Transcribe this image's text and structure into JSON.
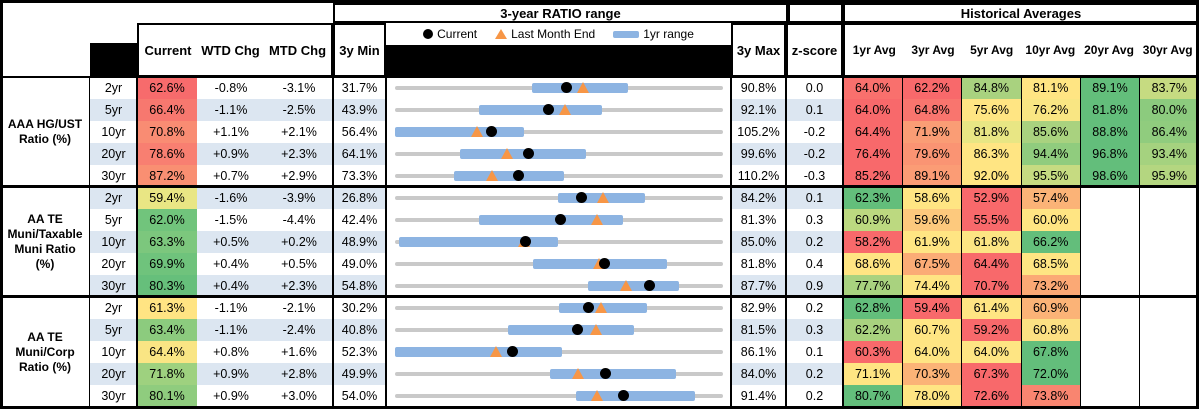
{
  "header": {
    "ratio_range_title": "3-year RATIO range",
    "historical_title": "Historical Averages",
    "col_current": "Current",
    "col_wtd": "WTD Chg",
    "col_mtd": "MTD Chg",
    "col_min": "3y Min",
    "col_max": "3y Max",
    "col_z": "z-score",
    "avg_cols": [
      "1yr Avg",
      "3yr Avg",
      "5yr Avg",
      "10yr Avg",
      "20yr Avg",
      "30yr Avg"
    ],
    "legend": {
      "current_label": "Current",
      "last_month_label": "Last Month End",
      "range_label": "1yr range"
    }
  },
  "colors": {
    "band_blue": "#DCE6F1",
    "bar_blue": "#8DB4E2",
    "line_gray": "#C9C9C9",
    "triangle_orange": "#F79646",
    "dot_black": "#000000",
    "heat_red": "#F8696B",
    "heat_yellow": "#FFE583",
    "heat_green": "#63BE7B"
  },
  "groups": [
    {
      "label": "AAA HG/UST\nRatio (%)",
      "rows": [
        {
          "tenor": "2yr",
          "current": "62.6%",
          "current_color": "#F76B6C",
          "wtd_chg": "-0.8%",
          "mtd_chg": "-3.1%",
          "min": "31.7%",
          "max": "90.8%",
          "zscore": "0.0",
          "range": {
            "min": 31.7,
            "max": 90.8,
            "bar_low": 56.4,
            "bar_high": 73.7,
            "current": 62.6,
            "last_month": 65.7
          },
          "avgs": [
            {
              "v": "64.0%",
              "color": "#F9706D"
            },
            {
              "v": "62.2%",
              "color": "#F8696B"
            },
            {
              "v": "84.8%",
              "color": "#A9D27F"
            },
            {
              "v": "81.1%",
              "color": "#FFE583"
            },
            {
              "v": "89.1%",
              "color": "#63BE7B"
            },
            {
              "v": "83.7%",
              "color": "#C6DB81"
            }
          ]
        },
        {
          "tenor": "5yr",
          "current": "66.4%",
          "current_color": "#F7786F",
          "wtd_chg": "-1.1%",
          "mtd_chg": "-2.5%",
          "min": "43.9%",
          "max": "92.1%",
          "zscore": "0.1",
          "range": {
            "min": 43.9,
            "max": 92.1,
            "bar_low": 56.2,
            "bar_high": 74.3,
            "current": 66.4,
            "last_month": 68.9
          },
          "avgs": [
            {
              "v": "64.0%",
              "color": "#F8696B"
            },
            {
              "v": "64.8%",
              "color": "#F9756E"
            },
            {
              "v": "75.6%",
              "color": "#FFE583"
            },
            {
              "v": "76.2%",
              "color": "#F9E683"
            },
            {
              "v": "81.8%",
              "color": "#63BE7B"
            },
            {
              "v": "80.0%",
              "color": "#8CCB7E"
            }
          ]
        },
        {
          "tenor": "10yr",
          "current": "70.8%",
          "current_color": "#F98C73",
          "wtd_chg": "+1.1%",
          "mtd_chg": "+2.1%",
          "min": "56.4%",
          "max": "105.2%",
          "zscore": "-0.2",
          "range": {
            "min": 56.4,
            "max": 105.2,
            "bar_low": 56.4,
            "bar_high": 75.6,
            "current": 70.8,
            "last_month": 68.7
          },
          "avgs": [
            {
              "v": "64.4%",
              "color": "#F8696B"
            },
            {
              "v": "71.9%",
              "color": "#FA9D75"
            },
            {
              "v": "81.8%",
              "color": "#E8E684"
            },
            {
              "v": "85.6%",
              "color": "#A9D27F"
            },
            {
              "v": "88.8%",
              "color": "#63BE7B"
            },
            {
              "v": "86.4%",
              "color": "#90CC7E"
            }
          ]
        },
        {
          "tenor": "20yr",
          "current": "78.6%",
          "current_color": "#F87F71",
          "wtd_chg": "+0.9%",
          "mtd_chg": "+2.3%",
          "min": "64.1%",
          "max": "99.6%",
          "zscore": "-0.2",
          "range": {
            "min": 64.1,
            "max": 99.6,
            "bar_low": 71.1,
            "bar_high": 84.8,
            "current": 78.6,
            "last_month": 76.3
          },
          "avgs": [
            {
              "v": "76.4%",
              "color": "#F8696B"
            },
            {
              "v": "79.6%",
              "color": "#FA9473"
            },
            {
              "v": "86.3%",
              "color": "#FFE583"
            },
            {
              "v": "94.4%",
              "color": "#90CC7E"
            },
            {
              "v": "96.8%",
              "color": "#63BE7B"
            },
            {
              "v": "93.4%",
              "color": "#A5D27F"
            }
          ]
        },
        {
          "tenor": "30yr",
          "current": "87.2%",
          "current_color": "#F98F72",
          "wtd_chg": "+0.7%",
          "mtd_chg": "+2.9%",
          "min": "73.3%",
          "max": "110.2%",
          "zscore": "-0.3",
          "range": {
            "min": 73.3,
            "max": 110.2,
            "bar_low": 79.9,
            "bar_high": 92.3,
            "current": 87.2,
            "last_month": 84.3
          },
          "avgs": [
            {
              "v": "85.2%",
              "color": "#F8696B"
            },
            {
              "v": "89.1%",
              "color": "#FB9C75"
            },
            {
              "v": "92.0%",
              "color": "#FFE583"
            },
            {
              "v": "95.5%",
              "color": "#C6DB81"
            },
            {
              "v": "98.6%",
              "color": "#63BE7B"
            },
            {
              "v": "95.9%",
              "color": "#B4D680"
            }
          ]
        }
      ]
    },
    {
      "label": "AA TE\nMuni/Taxable\nMuni Ratio\n(%)",
      "rows": [
        {
          "tenor": "2yr",
          "current": "59.4%",
          "current_color": "#E9E684",
          "wtd_chg": "-1.6%",
          "mtd_chg": "-3.9%",
          "min": "26.8%",
          "max": "84.2%",
          "zscore": "0.1",
          "range": {
            "min": 26.8,
            "max": 84.2,
            "bar_low": 55.4,
            "bar_high": 70.6,
            "current": 59.4,
            "last_month": 63.3
          },
          "avgs": [
            {
              "v": "62.3%",
              "color": "#63BE7B"
            },
            {
              "v": "58.6%",
              "color": "#FFE583"
            },
            {
              "v": "52.9%",
              "color": "#F8696B"
            },
            {
              "v": "57.4%",
              "color": "#FBB377"
            }
          ]
        },
        {
          "tenor": "5yr",
          "current": "62.0%",
          "current_color": "#71C47C",
          "wtd_chg": "-1.5%",
          "mtd_chg": "-4.4%",
          "min": "42.4%",
          "max": "81.3%",
          "zscore": "0.3",
          "range": {
            "min": 42.4,
            "max": 81.3,
            "bar_low": 52.4,
            "bar_high": 69.5,
            "current": 62.0,
            "last_month": 66.4
          },
          "avgs": [
            {
              "v": "60.9%",
              "color": "#BCD980"
            },
            {
              "v": "59.6%",
              "color": "#FDC97D"
            },
            {
              "v": "55.5%",
              "color": "#F8696B"
            },
            {
              "v": "60.0%",
              "color": "#FFE583"
            }
          ]
        },
        {
          "tenor": "10yr",
          "current": "63.3%",
          "current_color": "#7CC77D",
          "wtd_chg": "+0.5%",
          "mtd_chg": "+0.2%",
          "min": "48.9%",
          "max": "85.0%",
          "zscore": "0.2",
          "range": {
            "min": 48.9,
            "max": 85.0,
            "bar_low": 49.3,
            "bar_high": 66.8,
            "current": 63.3,
            "last_month": 63.1
          },
          "avgs": [
            {
              "v": "58.2%",
              "color": "#F8696B"
            },
            {
              "v": "61.9%",
              "color": "#FFE583"
            },
            {
              "v": "61.8%",
              "color": "#FCE583"
            },
            {
              "v": "66.2%",
              "color": "#63BE7B"
            }
          ]
        },
        {
          "tenor": "20yr",
          "current": "69.9%",
          "current_color": "#6FC37C",
          "wtd_chg": "+0.4%",
          "mtd_chg": "+0.5%",
          "min": "49.0%",
          "max": "81.8%",
          "zscore": "0.4",
          "range": {
            "min": 49.0,
            "max": 81.8,
            "bar_low": 62.8,
            "bar_high": 76.2,
            "current": 69.9,
            "last_month": 69.4
          },
          "avgs": [
            {
              "v": "68.6%",
              "color": "#FFE583"
            },
            {
              "v": "67.5%",
              "color": "#FBAC76"
            },
            {
              "v": "64.4%",
              "color": "#F8696B"
            },
            {
              "v": "68.5%",
              "color": "#FEE583"
            }
          ]
        },
        {
          "tenor": "30yr",
          "current": "80.3%",
          "current_color": "#66BF7B",
          "wtd_chg": "+0.4%",
          "mtd_chg": "+2.3%",
          "min": "54.8%",
          "max": "87.7%",
          "zscore": "0.9",
          "range": {
            "min": 54.8,
            "max": 87.7,
            "bar_low": 74.2,
            "bar_high": 83.3,
            "current": 80.3,
            "last_month": 78.0
          },
          "avgs": [
            {
              "v": "77.7%",
              "color": "#A9D27F"
            },
            {
              "v": "74.4%",
              "color": "#FFE583"
            },
            {
              "v": "70.7%",
              "color": "#F8696B"
            },
            {
              "v": "73.2%",
              "color": "#FBA975"
            }
          ]
        }
      ]
    },
    {
      "label": "AA TE\nMuni/Corp\nRatio (%)",
      "rows": [
        {
          "tenor": "2yr",
          "current": "61.3%",
          "current_color": "#FFE483",
          "wtd_chg": "-1.1%",
          "mtd_chg": "-2.1%",
          "min": "30.2%",
          "max": "82.9%",
          "zscore": "0.2",
          "range": {
            "min": 30.2,
            "max": 82.9,
            "bar_low": 56.6,
            "bar_high": 70.7,
            "current": 61.3,
            "last_month": 63.4
          },
          "avgs": [
            {
              "v": "62.8%",
              "color": "#63BE7B"
            },
            {
              "v": "59.4%",
              "color": "#F8696B"
            },
            {
              "v": "61.4%",
              "color": "#FFE583"
            },
            {
              "v": "60.9%",
              "color": "#FBB377"
            }
          ]
        },
        {
          "tenor": "5yr",
          "current": "63.4%",
          "current_color": "#8CCB7E",
          "wtd_chg": "-1.1%",
          "mtd_chg": "-2.4%",
          "min": "40.8%",
          "max": "81.5%",
          "zscore": "0.3",
          "range": {
            "min": 40.8,
            "max": 81.5,
            "bar_low": 54.8,
            "bar_high": 70.4,
            "current": 63.4,
            "last_month": 65.8
          },
          "avgs": [
            {
              "v": "62.2%",
              "color": "#A9D27F"
            },
            {
              "v": "60.7%",
              "color": "#FFE583"
            },
            {
              "v": "59.2%",
              "color": "#F8696B"
            },
            {
              "v": "60.8%",
              "color": "#FCE083"
            }
          ]
        },
        {
          "tenor": "10yr",
          "current": "64.4%",
          "current_color": "#F9E584",
          "wtd_chg": "+0.8%",
          "mtd_chg": "+1.6%",
          "min": "52.3%",
          "max": "86.1%",
          "zscore": "0.1",
          "range": {
            "min": 52.3,
            "max": 86.1,
            "bar_low": 52.3,
            "bar_high": 69.5,
            "current": 64.4,
            "last_month": 62.8
          },
          "avgs": [
            {
              "v": "60.3%",
              "color": "#F8696B"
            },
            {
              "v": "64.0%",
              "color": "#FFE583"
            },
            {
              "v": "64.0%",
              "color": "#FEE583"
            },
            {
              "v": "67.8%",
              "color": "#63BE7B"
            }
          ]
        },
        {
          "tenor": "20yr",
          "current": "71.8%",
          "current_color": "#9ED17F",
          "wtd_chg": "+0.9%",
          "mtd_chg": "+2.8%",
          "min": "49.9%",
          "max": "84.0%",
          "zscore": "0.2",
          "range": {
            "min": 49.9,
            "max": 84.0,
            "bar_low": 66.0,
            "bar_high": 79.1,
            "current": 71.8,
            "last_month": 69.0
          },
          "avgs": [
            {
              "v": "71.1%",
              "color": "#FFE583"
            },
            {
              "v": "70.3%",
              "color": "#FBB377"
            },
            {
              "v": "67.3%",
              "color": "#F8696B"
            },
            {
              "v": "72.0%",
              "color": "#63BE7B"
            }
          ]
        },
        {
          "tenor": "30yr",
          "current": "80.1%",
          "current_color": "#8FCC7E",
          "wtd_chg": "+0.9%",
          "mtd_chg": "+3.0%",
          "min": "54.0%",
          "max": "91.4%",
          "zscore": "0.2",
          "range": {
            "min": 54.0,
            "max": 91.4,
            "bar_low": 74.6,
            "bar_high": 88.2,
            "current": 80.1,
            "last_month": 77.1
          },
          "avgs": [
            {
              "v": "80.7%",
              "color": "#63BE7B"
            },
            {
              "v": "78.0%",
              "color": "#FFE583"
            },
            {
              "v": "72.6%",
              "color": "#F8696B"
            },
            {
              "v": "73.8%",
              "color": "#F98570"
            }
          ]
        }
      ]
    }
  ]
}
